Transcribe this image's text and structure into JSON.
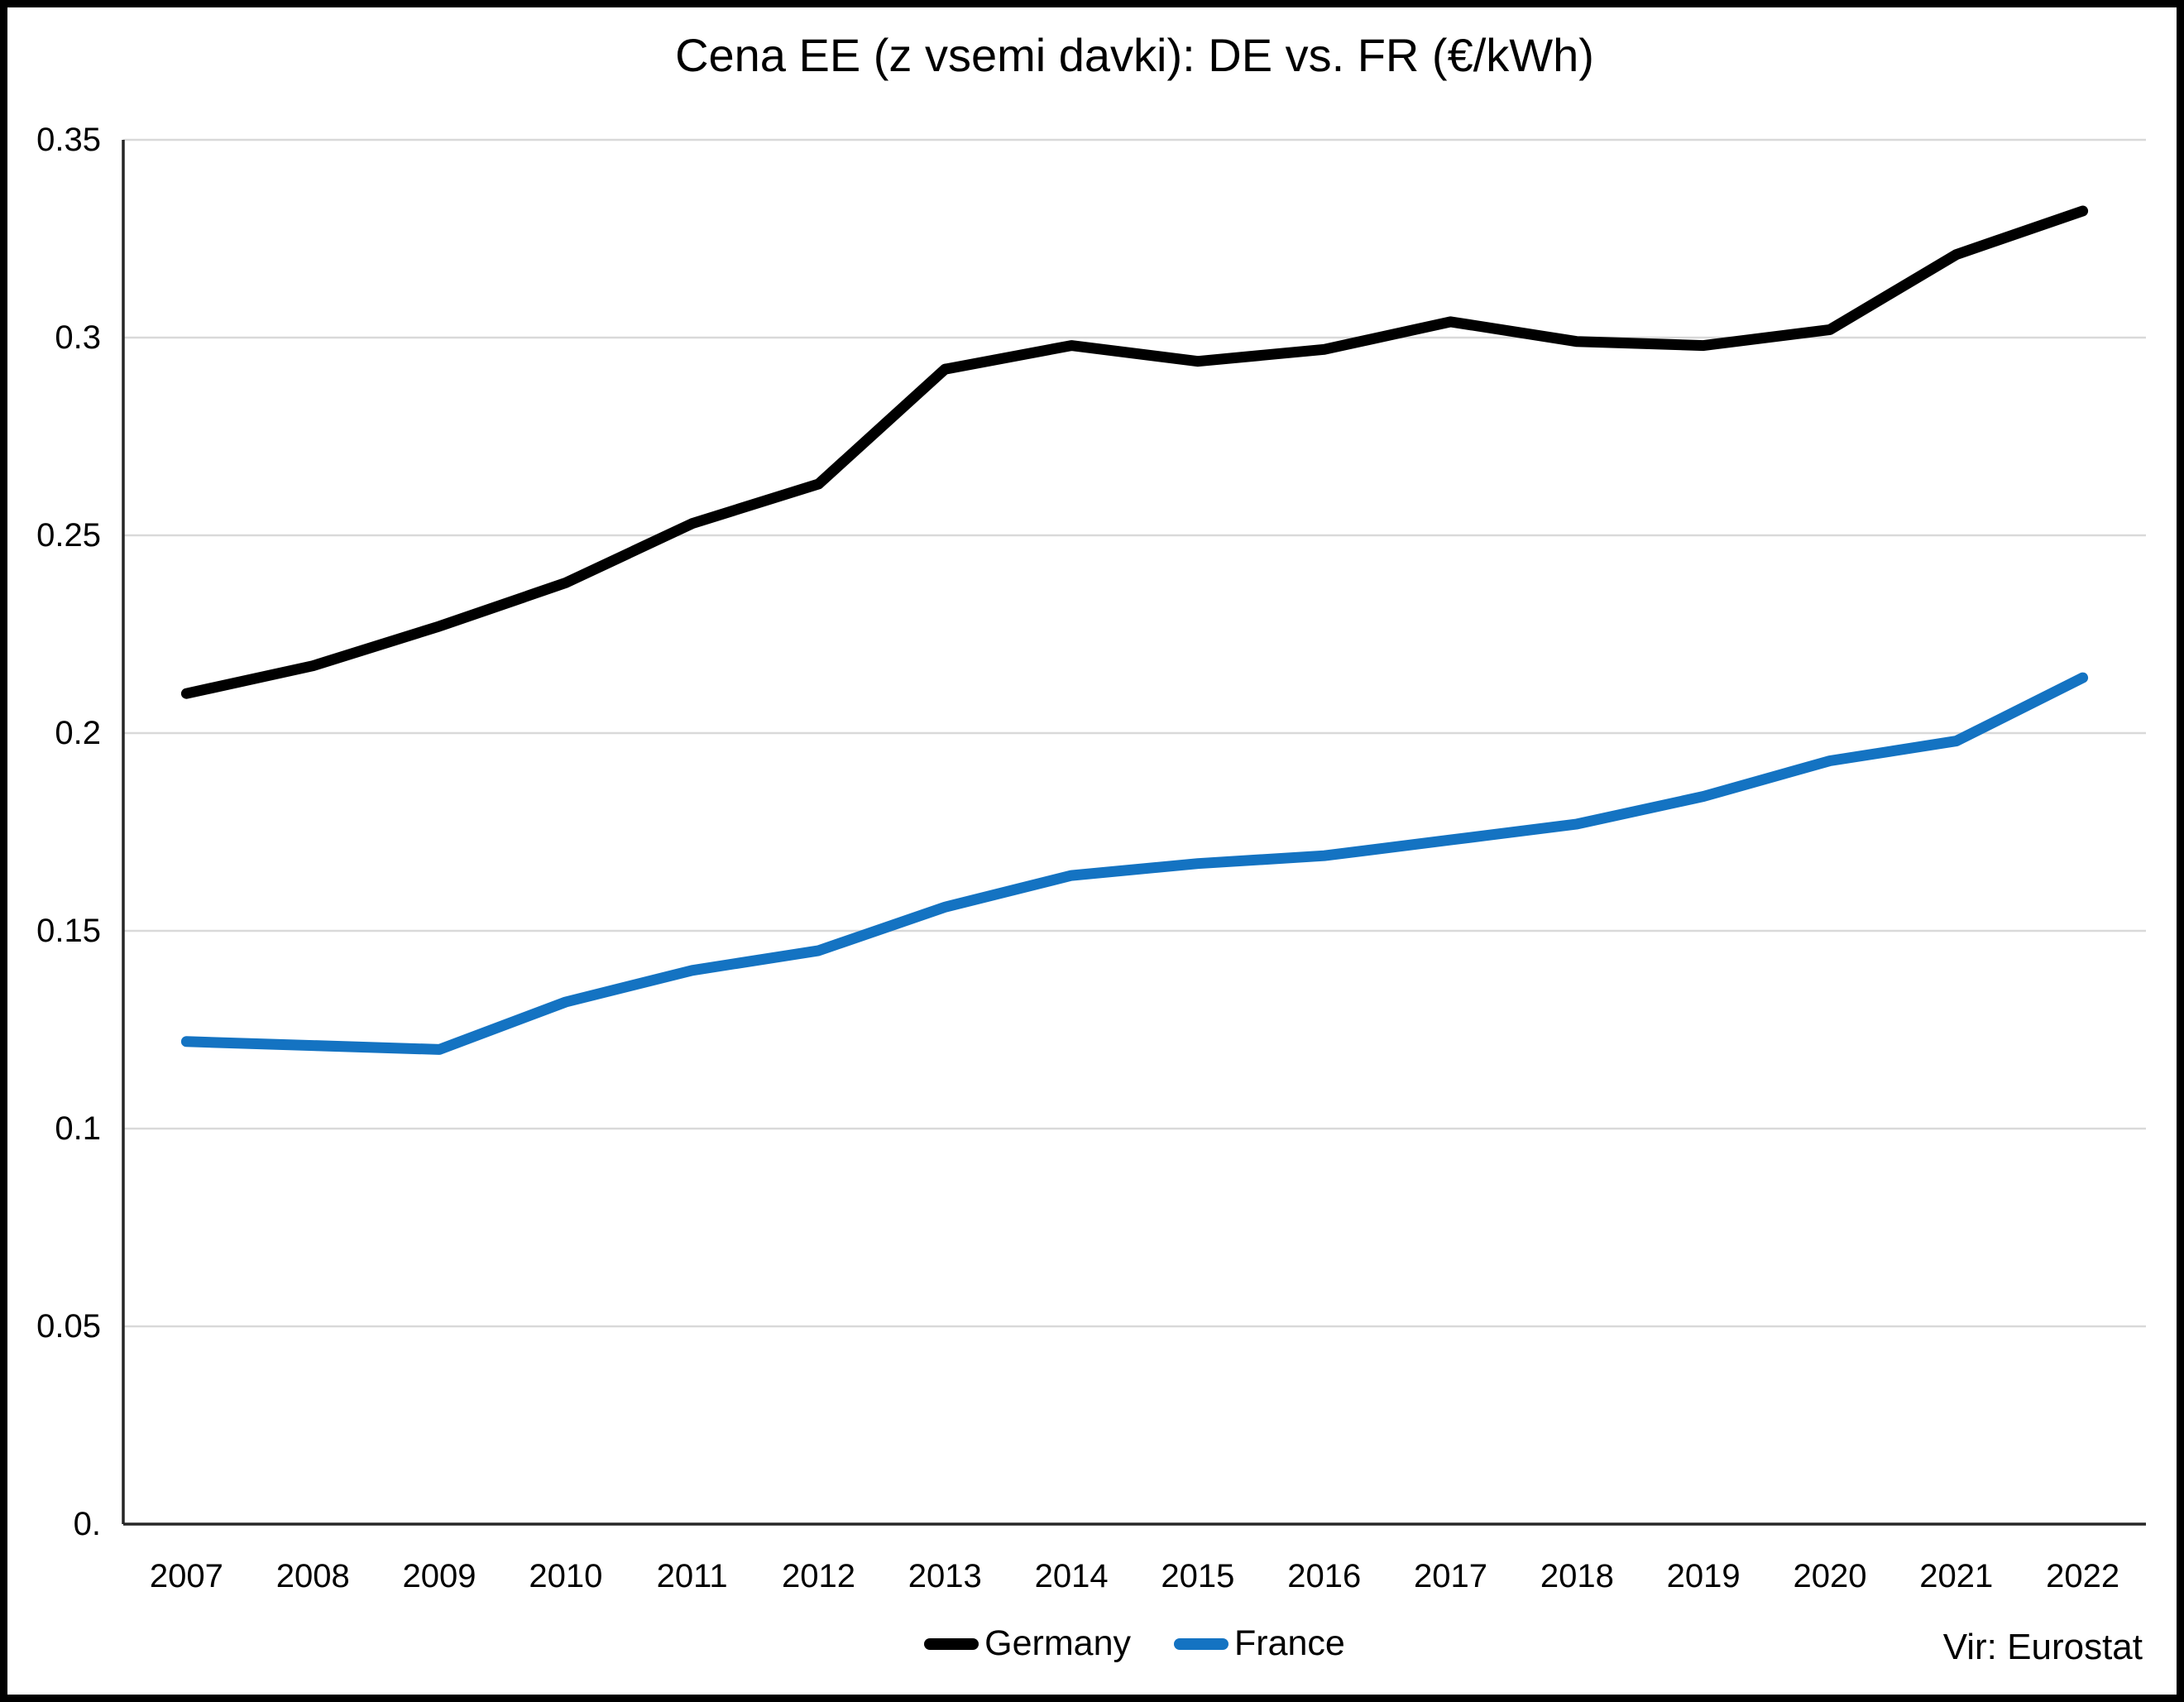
{
  "chart_data": {
    "type": "line",
    "title": "Cena EE (z vsemi davki): DE vs. FR (€/kWh)",
    "xlabel": "",
    "ylabel": "",
    "categories": [
      "2007",
      "2008",
      "2009",
      "2010",
      "2011",
      "2012",
      "2013",
      "2014",
      "2015",
      "2016",
      "2017",
      "2018",
      "2019",
      "2020",
      "2021",
      "2022"
    ],
    "series": [
      {
        "name": "Germany",
        "color": "#000000",
        "values": [
          0.21,
          0.217,
          0.227,
          0.238,
          0.253,
          0.263,
          0.292,
          0.298,
          0.294,
          0.297,
          0.304,
          0.299,
          0.298,
          0.302,
          0.321,
          0.332
        ]
      },
      {
        "name": "France",
        "color": "#1473C2",
        "values": [
          0.122,
          0.121,
          0.12,
          0.132,
          0.14,
          0.145,
          0.156,
          0.164,
          0.167,
          0.169,
          0.173,
          0.177,
          0.184,
          0.193,
          0.198,
          0.214
        ]
      }
    ],
    "y_axis": {
      "min": 0,
      "max": 0.35,
      "tick_step": 0.05,
      "tick_labels_bottom_to_top": [
        "0.",
        "0.05",
        "0.1",
        "0.15",
        "0.2",
        "0.25",
        "0.3",
        "0.35"
      ]
    },
    "ylim": [
      0,
      0.35
    ],
    "grid": true,
    "legend_position": "bottom-center",
    "source": "Vir: Eurostat",
    "colors": {
      "gridline": "#D9D9D9",
      "axis": "#262626",
      "background": "#FFFFFF",
      "frame_border": "#000000"
    }
  }
}
